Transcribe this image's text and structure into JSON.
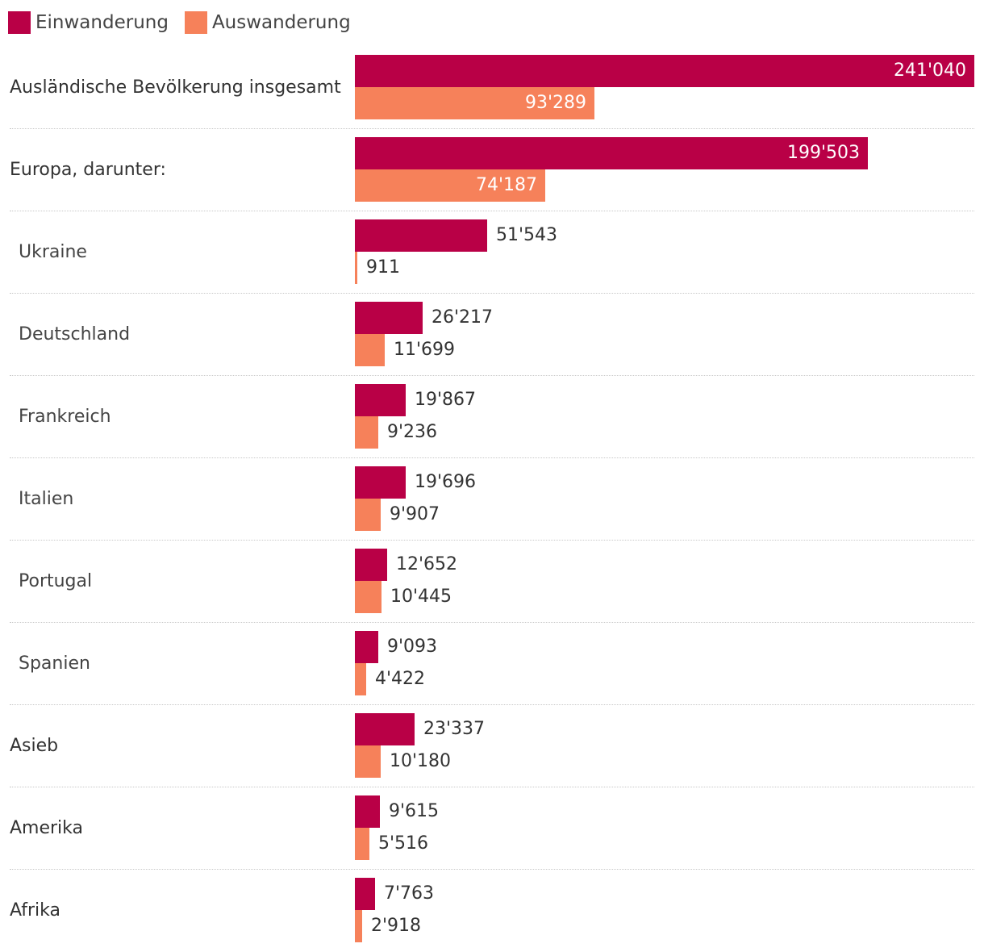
{
  "colors": {
    "immigration": "#b90046",
    "emigration": "#f6815a"
  },
  "legend": {
    "immigration_label": "Einwanderung",
    "emigration_label": "Auswanderung"
  },
  "chart_data": {
    "type": "bar",
    "orientation": "horizontal",
    "categories": [
      "Ausländische Bevölkerung insgesamt",
      "Europa, darunter:",
      "Ukraine",
      "Deutschland",
      "Frankreich",
      "Italien",
      "Portugal",
      "Spanien",
      "Asieb",
      "Amerika",
      "Afrika"
    ],
    "category_levels": [
      1,
      1,
      2,
      2,
      2,
      2,
      2,
      2,
      1,
      1,
      1
    ],
    "series": [
      {
        "name": "Einwanderung",
        "values": [
          241040,
          199503,
          51543,
          26217,
          19867,
          19696,
          12652,
          9093,
          23337,
          9615,
          7763
        ],
        "labels": [
          "241'040",
          "199'503",
          "51'543",
          "26'217",
          "19'867",
          "19'696",
          "12'652",
          "9'093",
          "23'337",
          "9'615",
          "7'763"
        ]
      },
      {
        "name": "Auswanderung",
        "values": [
          93289,
          74187,
          911,
          11699,
          9236,
          9907,
          10445,
          4422,
          10180,
          5516,
          2918
        ],
        "labels": [
          "93'289",
          "74'187",
          "911",
          "11'699",
          "9'236",
          "9'907",
          "10'445",
          "4'422",
          "10'180",
          "5'516",
          "2'918"
        ]
      }
    ],
    "xlim": [
      0,
      241040
    ],
    "title": "",
    "xlabel": "",
    "ylabel": "",
    "legend_position": "top-left",
    "grid": false
  }
}
